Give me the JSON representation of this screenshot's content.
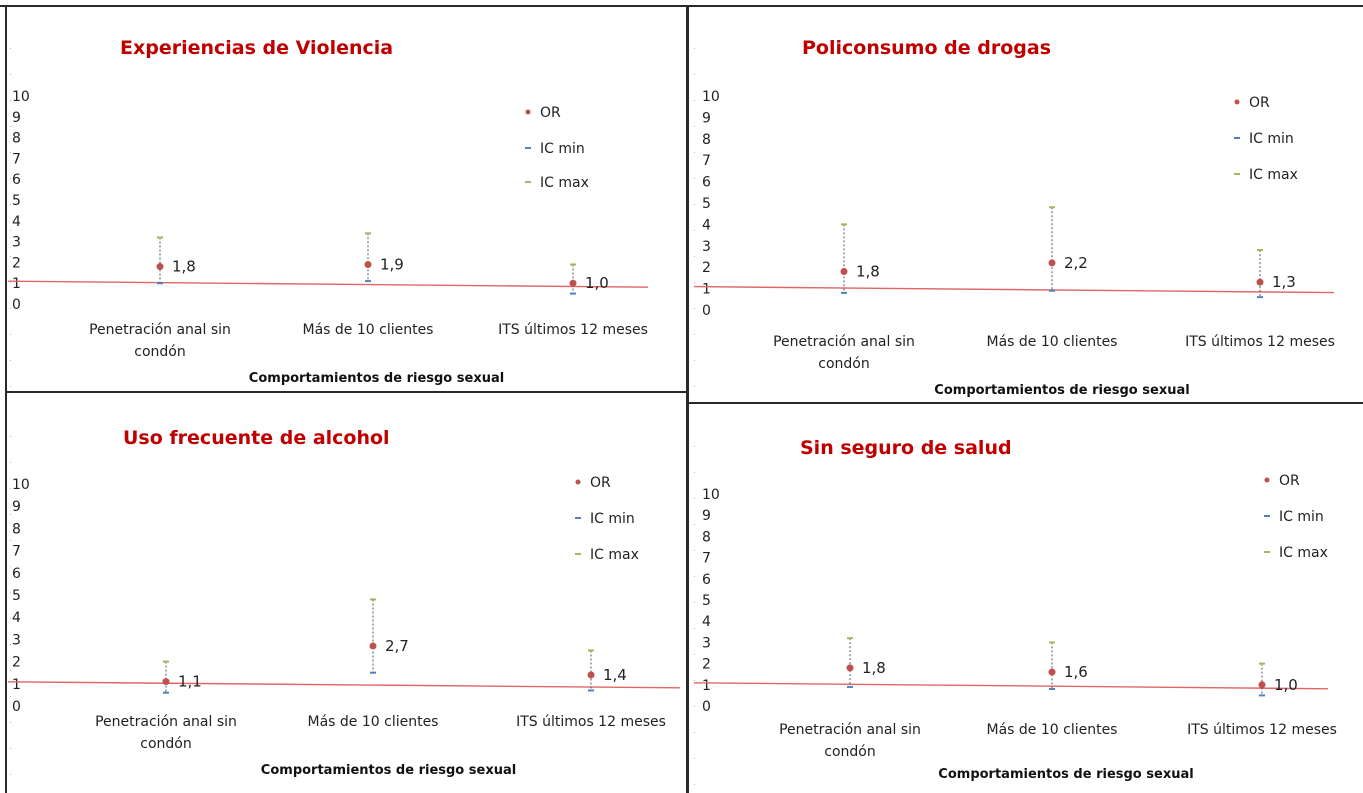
{
  "colors": {
    "title": "#c00000",
    "or_point": "#c0504d",
    "ic_min": "#4f81bd",
    "ic_max": "#9bbb59",
    "reference_line": "#e06666",
    "whisker": "#555555"
  },
  "legend": {
    "or": "OR",
    "ic_min": "IC min",
    "ic_max": "IC max"
  },
  "chart_data": [
    {
      "type": "scatter",
      "title": "Experiencias de Violencia",
      "xlabel": "Comportamientos de riesgo sexual",
      "ylim": [
        0,
        10
      ],
      "yticks": [
        "0",
        "1",
        "2",
        "3",
        "4",
        "5",
        "6",
        "7",
        "8",
        "9",
        "10"
      ],
      "categories": [
        {
          "line1": "Penetración anal sin",
          "line2": "condón"
        },
        {
          "line1": "Más de 10 clientes",
          "line2": ""
        },
        {
          "line1": "ITS últimos 12 meses",
          "line2": ""
        }
      ],
      "series": [
        {
          "name": "OR",
          "values": [
            1.8,
            1.9,
            1.0
          ],
          "labels": [
            "1,8",
            "1,9",
            "1,0"
          ]
        },
        {
          "name": "IC min",
          "values": [
            1.0,
            1.1,
            0.5
          ]
        },
        {
          "name": "IC max",
          "values": [
            3.2,
            3.4,
            1.9
          ]
        }
      ]
    },
    {
      "type": "scatter",
      "title": "Policonsumo de drogas",
      "xlabel": "Comportamientos de riesgo sexual",
      "ylim": [
        0,
        10
      ],
      "yticks": [
        "0",
        "1",
        "2",
        "3",
        "4",
        "5",
        "6",
        "7",
        "8",
        "9",
        "10"
      ],
      "categories": [
        {
          "line1": "Penetración anal sin",
          "line2": "condón"
        },
        {
          "line1": "Más de 10 clientes",
          "line2": ""
        },
        {
          "line1": "ITS últimos 12 meses",
          "line2": ""
        }
      ],
      "series": [
        {
          "name": "OR",
          "values": [
            1.8,
            2.2,
            1.3
          ],
          "labels": [
            "1,8",
            "2,2",
            "1,3"
          ]
        },
        {
          "name": "IC min",
          "values": [
            0.8,
            0.9,
            0.6
          ]
        },
        {
          "name": "IC max",
          "values": [
            4.0,
            4.8,
            2.8
          ]
        }
      ]
    },
    {
      "type": "scatter",
      "title": "Uso frecuente de alcohol",
      "xlabel": "Comportamientos de riesgo sexual",
      "ylim": [
        0,
        10
      ],
      "yticks": [
        "0",
        "1",
        "2",
        "3",
        "4",
        "5",
        "6",
        "7",
        "8",
        "9",
        "10"
      ],
      "categories": [
        {
          "line1": "Penetración anal sin",
          "line2": "condón"
        },
        {
          "line1": "Más de 10 clientes",
          "line2": ""
        },
        {
          "line1": "ITS últimos 12 meses",
          "line2": ""
        }
      ],
      "series": [
        {
          "name": "OR",
          "values": [
            1.1,
            2.7,
            1.4
          ],
          "labels": [
            "1,1",
            "2,7",
            "1,4"
          ]
        },
        {
          "name": "IC min",
          "values": [
            0.6,
            1.5,
            0.7
          ]
        },
        {
          "name": "IC max",
          "values": [
            2.0,
            4.8,
            2.5
          ]
        }
      ]
    },
    {
      "type": "scatter",
      "title": "Sin seguro de salud",
      "xlabel": "Comportamientos de riesgo sexual",
      "ylim": [
        0,
        10
      ],
      "yticks": [
        "0",
        "1",
        "2",
        "3",
        "4",
        "5",
        "6",
        "7",
        "8",
        "9",
        "10"
      ],
      "categories": [
        {
          "line1": "Penetración anal sin",
          "line2": "condón"
        },
        {
          "line1": "Más de 10 clientes",
          "line2": ""
        },
        {
          "line1": "ITS últimos 12 meses",
          "line2": ""
        }
      ],
      "series": [
        {
          "name": "OR",
          "values": [
            1.8,
            1.6,
            1.0
          ],
          "labels": [
            "1,8",
            "1,6",
            "1,0"
          ]
        },
        {
          "name": "IC min",
          "values": [
            0.9,
            0.8,
            0.5
          ]
        },
        {
          "name": "IC max",
          "values": [
            3.2,
            3.0,
            2.0
          ]
        }
      ]
    }
  ]
}
